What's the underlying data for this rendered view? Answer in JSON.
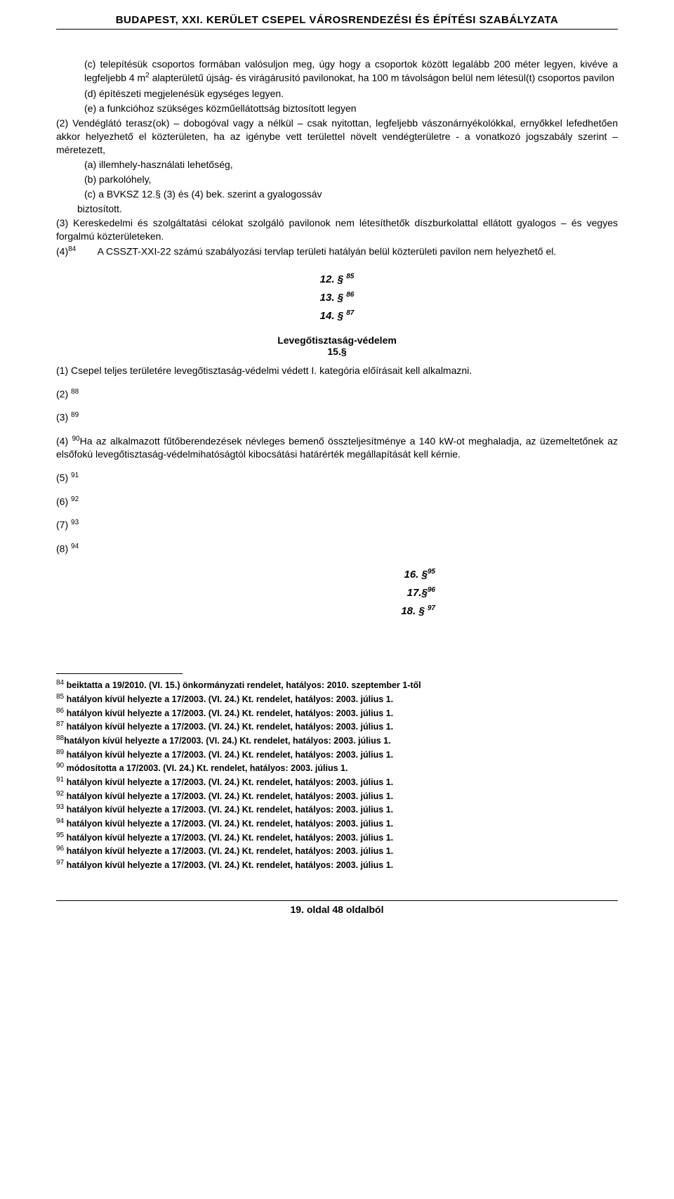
{
  "header": "BUDAPEST, XXI. KERÜLET  CSEPEL VÁROSRENDEZÉSI ÉS ÉPÍTÉSI SZABÁLYZATA",
  "body": {
    "c_lead": "(c) telepítésük csoportos formában valósuljon meg, úgy hogy a csoportok között legalább 200 méter legyen, kivéve a legfeljebb 4 m",
    "c_sup": "2",
    "c_tail": " alapterületű újság- és virágárusító pavilonokat, ha 100 m távolságon belül nem létesül(t) csoportos pavilon",
    "d": "(d) építészeti megjelenésük egységes legyen.",
    "e": "(e) a funkcióhoz szükséges közműellátottság biztosított legyen",
    "p2": "(2) Vendéglátó terasz(ok) – dobogóval vagy a nélkül – csak nyitottan, legfeljebb vászonárnyékolókkal, ernyőkkel lefedhetően akkor helyezhető el közterületen, ha az igénybe vett területtel növelt vendégterületre - a vonatkozó jogszabály szerint – méretezett,",
    "p2a": "(a) illemhely-használati lehetőség,",
    "p2b": "(b) parkolóhely,",
    "p2c": "(c) a BVKSZ 12.§ (3) és (4) bek. szerint a gyalogossáv",
    "p2_tail": "biztosított.",
    "p3": "(3) Kereskedelmi és szolgáltatási célokat szolgáló pavilonok nem létesíthetők díszburkolattal ellátott gyalogos – és vegyes forgalmú közterületeken.",
    "p4_lead": "(4)",
    "p4_sup": "84",
    "p4_tail": "        A CSSZT-XXI-22 számú szabályozási tervlap területi hatályán belül közterületi pavilon nem helyezhető el.",
    "s12": "12. §",
    "s12_sup": "85",
    "s13": "13. §",
    "s13_sup": "86",
    "s14": "14. §",
    "s14_sup": "87",
    "s15_title": "Levegőtisztaság-védelem",
    "s15": "15.§",
    "p15_1": "(1) Csepel teljes területére levegőtisztaság-védelmi védett I. kategória előírásait kell alkalmazni.",
    "p15_2": "(2)",
    "p15_2_sup": "88",
    "p15_3": "(3)",
    "p15_3_sup": "89",
    "p15_4_lead": "(4) ",
    "p15_4_sup": "90",
    "p15_4_tail": "Ha az alkalmazott fűtőberendezések névleges bemenő összteljesítménye a 140 kW-ot meghaladja, az üzemeltetőnek az elsőfokú levegőtisztaság-védelmihatóságtól kibocsátási határérték megállapítását kell kérnie.",
    "p15_5": "(5)",
    "p15_5_sup": "91",
    "p15_6": "(6)",
    "p15_6_sup": "92",
    "p15_7": "(7)",
    "p15_7_sup": "93",
    "p15_8": "(8)",
    "p15_8_sup": "94",
    "s16": "16. §",
    "s16_sup": "95",
    "s17": "17.§",
    "s17_sup": "96",
    "s18": "18. §",
    "s18_sup": "97"
  },
  "footnotes": [
    {
      "num": "84",
      "text": " beiktatta a 19/2010. (VI. 15.) önkormányzati rendelet, hatályos: 2010. szeptember 1-től"
    },
    {
      "num": "85",
      "text": " hatályon kívül helyezte a 17/2003. (VI. 24.) Kt. rendelet, hatályos: 2003. július 1."
    },
    {
      "num": "86",
      "text": " hatályon kívül helyezte a 17/2003. (VI. 24.) Kt. rendelet, hatályos: 2003. július 1."
    },
    {
      "num": "87",
      "text": " hatályon kívül helyezte a 17/2003. (VI. 24.) Kt. rendelet, hatályos: 2003. július 1."
    },
    {
      "num": "88",
      "text": "hatályon kívül helyezte a 17/2003. (VI. 24.) Kt. rendelet, hatályos: 2003. július 1."
    },
    {
      "num": "89",
      "text": " hatályon kívül helyezte a 17/2003. (VI. 24.) Kt. rendelet, hatályos: 2003. július 1."
    },
    {
      "num": "90",
      "text": " módosította a 17/2003. (VI. 24.) Kt. rendelet, hatályos: 2003. július 1."
    },
    {
      "num": "91",
      "text": " hatályon kívül helyezte a 17/2003. (VI. 24.) Kt. rendelet, hatályos: 2003. július 1."
    },
    {
      "num": "92",
      "text": " hatályon kívül helyezte a 17/2003. (VI. 24.) Kt. rendelet, hatályos: 2003. július 1."
    },
    {
      "num": "93",
      "text": " hatályon kívül helyezte a 17/2003. (VI. 24.) Kt. rendelet, hatályos: 2003. július 1."
    },
    {
      "num": "94",
      "text": " hatályon kívül helyezte a 17/2003. (VI. 24.) Kt. rendelet, hatályos: 2003. július 1."
    },
    {
      "num": "95",
      "text": " hatályon kívül helyezte a 17/2003. (VI. 24.) Kt. rendelet, hatályos: 2003. július 1."
    },
    {
      "num": "96",
      "text": " hatályon kívül helyezte a 17/2003. (VI. 24.) Kt. rendelet, hatályos: 2003. július 1."
    },
    {
      "num": "97",
      "text": " hatályon kívül helyezte a 17/2003. (VI. 24.) Kt. rendelet, hatályos: 2003. július 1."
    }
  ],
  "footer": "19. oldal 48 oldalból"
}
